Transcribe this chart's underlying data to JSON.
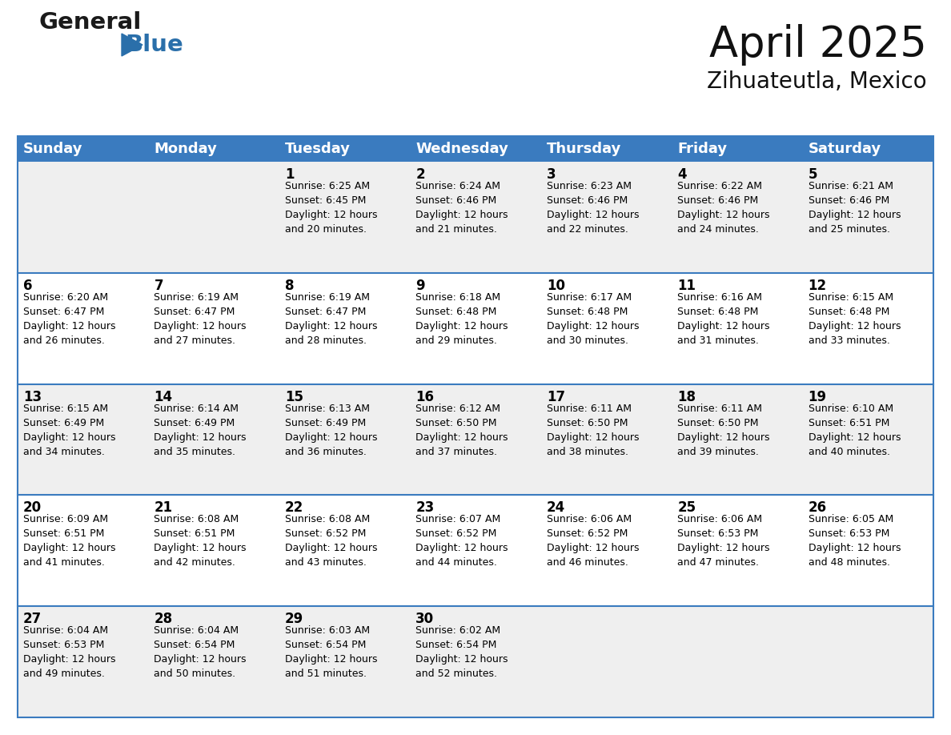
{
  "title": "April 2025",
  "subtitle": "Zihuateutla, Mexico",
  "header_color": "#3a7bbf",
  "header_text_color": "#ffffff",
  "cell_bg_white": "#ffffff",
  "cell_bg_gray": "#efefef",
  "border_color": "#3a7bbf",
  "separator_color": "#3a7bbf",
  "text_color": "#000000",
  "days_of_week": [
    "Sunday",
    "Monday",
    "Tuesday",
    "Wednesday",
    "Thursday",
    "Friday",
    "Saturday"
  ],
  "weeks": [
    [
      {
        "day": "",
        "info": ""
      },
      {
        "day": "",
        "info": ""
      },
      {
        "day": "1",
        "info": "Sunrise: 6:25 AM\nSunset: 6:45 PM\nDaylight: 12 hours\nand 20 minutes."
      },
      {
        "day": "2",
        "info": "Sunrise: 6:24 AM\nSunset: 6:46 PM\nDaylight: 12 hours\nand 21 minutes."
      },
      {
        "day": "3",
        "info": "Sunrise: 6:23 AM\nSunset: 6:46 PM\nDaylight: 12 hours\nand 22 minutes."
      },
      {
        "day": "4",
        "info": "Sunrise: 6:22 AM\nSunset: 6:46 PM\nDaylight: 12 hours\nand 24 minutes."
      },
      {
        "day": "5",
        "info": "Sunrise: 6:21 AM\nSunset: 6:46 PM\nDaylight: 12 hours\nand 25 minutes."
      }
    ],
    [
      {
        "day": "6",
        "info": "Sunrise: 6:20 AM\nSunset: 6:47 PM\nDaylight: 12 hours\nand 26 minutes."
      },
      {
        "day": "7",
        "info": "Sunrise: 6:19 AM\nSunset: 6:47 PM\nDaylight: 12 hours\nand 27 minutes."
      },
      {
        "day": "8",
        "info": "Sunrise: 6:19 AM\nSunset: 6:47 PM\nDaylight: 12 hours\nand 28 minutes."
      },
      {
        "day": "9",
        "info": "Sunrise: 6:18 AM\nSunset: 6:48 PM\nDaylight: 12 hours\nand 29 minutes."
      },
      {
        "day": "10",
        "info": "Sunrise: 6:17 AM\nSunset: 6:48 PM\nDaylight: 12 hours\nand 30 minutes."
      },
      {
        "day": "11",
        "info": "Sunrise: 6:16 AM\nSunset: 6:48 PM\nDaylight: 12 hours\nand 31 minutes."
      },
      {
        "day": "12",
        "info": "Sunrise: 6:15 AM\nSunset: 6:48 PM\nDaylight: 12 hours\nand 33 minutes."
      }
    ],
    [
      {
        "day": "13",
        "info": "Sunrise: 6:15 AM\nSunset: 6:49 PM\nDaylight: 12 hours\nand 34 minutes."
      },
      {
        "day": "14",
        "info": "Sunrise: 6:14 AM\nSunset: 6:49 PM\nDaylight: 12 hours\nand 35 minutes."
      },
      {
        "day": "15",
        "info": "Sunrise: 6:13 AM\nSunset: 6:49 PM\nDaylight: 12 hours\nand 36 minutes."
      },
      {
        "day": "16",
        "info": "Sunrise: 6:12 AM\nSunset: 6:50 PM\nDaylight: 12 hours\nand 37 minutes."
      },
      {
        "day": "17",
        "info": "Sunrise: 6:11 AM\nSunset: 6:50 PM\nDaylight: 12 hours\nand 38 minutes."
      },
      {
        "day": "18",
        "info": "Sunrise: 6:11 AM\nSunset: 6:50 PM\nDaylight: 12 hours\nand 39 minutes."
      },
      {
        "day": "19",
        "info": "Sunrise: 6:10 AM\nSunset: 6:51 PM\nDaylight: 12 hours\nand 40 minutes."
      }
    ],
    [
      {
        "day": "20",
        "info": "Sunrise: 6:09 AM\nSunset: 6:51 PM\nDaylight: 12 hours\nand 41 minutes."
      },
      {
        "day": "21",
        "info": "Sunrise: 6:08 AM\nSunset: 6:51 PM\nDaylight: 12 hours\nand 42 minutes."
      },
      {
        "day": "22",
        "info": "Sunrise: 6:08 AM\nSunset: 6:52 PM\nDaylight: 12 hours\nand 43 minutes."
      },
      {
        "day": "23",
        "info": "Sunrise: 6:07 AM\nSunset: 6:52 PM\nDaylight: 12 hours\nand 44 minutes."
      },
      {
        "day": "24",
        "info": "Sunrise: 6:06 AM\nSunset: 6:52 PM\nDaylight: 12 hours\nand 46 minutes."
      },
      {
        "day": "25",
        "info": "Sunrise: 6:06 AM\nSunset: 6:53 PM\nDaylight: 12 hours\nand 47 minutes."
      },
      {
        "day": "26",
        "info": "Sunrise: 6:05 AM\nSunset: 6:53 PM\nDaylight: 12 hours\nand 48 minutes."
      }
    ],
    [
      {
        "day": "27",
        "info": "Sunrise: 6:04 AM\nSunset: 6:53 PM\nDaylight: 12 hours\nand 49 minutes."
      },
      {
        "day": "28",
        "info": "Sunrise: 6:04 AM\nSunset: 6:54 PM\nDaylight: 12 hours\nand 50 minutes."
      },
      {
        "day": "29",
        "info": "Sunrise: 6:03 AM\nSunset: 6:54 PM\nDaylight: 12 hours\nand 51 minutes."
      },
      {
        "day": "30",
        "info": "Sunrise: 6:02 AM\nSunset: 6:54 PM\nDaylight: 12 hours\nand 52 minutes."
      },
      {
        "day": "",
        "info": ""
      },
      {
        "day": "",
        "info": ""
      },
      {
        "day": "",
        "info": ""
      }
    ]
  ],
  "logo_general_color": "#1a1a1a",
  "logo_blue_color": "#2a6faa",
  "title_fontsize": 38,
  "subtitle_fontsize": 20,
  "day_number_fontsize": 12,
  "cell_text_fontsize": 9,
  "header_fontsize": 13,
  "fig_width": 11.88,
  "fig_height": 9.18,
  "dpi": 100
}
